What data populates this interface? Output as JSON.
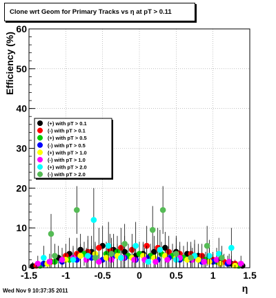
{
  "title": "Clone wrt Geom for Primary Tracks vs    η at pT > 0.11",
  "footer": "Wed Nov  9 10:37:35 2011",
  "chart_data": {
    "type": "scatter",
    "title": "Clone wrt Geom for Primary Tracks vs    η at pT > 0.11",
    "xlabel": "η",
    "ylabel": "Efficiency (%)",
    "xlim": [
      -1.5,
      1.5
    ],
    "ylim": [
      0,
      60
    ],
    "x_ticks": [
      "-1.5",
      "-1",
      "-0.5",
      "0",
      "0.5",
      "1",
      "1.5"
    ],
    "y_ticks": [
      "0",
      "10",
      "20",
      "30",
      "40",
      "50",
      "60"
    ],
    "grid": true,
    "legend_position": "left, middle",
    "series": [
      {
        "name": "(+) with pT > 0.1",
        "color": "#000000",
        "points": [
          [
            -1.45,
            0.4
          ],
          [
            -1.3,
            1.0
          ],
          [
            -1.1,
            2.5
          ],
          [
            -0.95,
            3.5
          ],
          [
            -0.8,
            4.5
          ],
          [
            -0.65,
            4.0
          ],
          [
            -0.5,
            5.5
          ],
          [
            -0.35,
            4.5
          ],
          [
            -0.2,
            4.0
          ],
          [
            -0.05,
            3.0
          ],
          [
            0.05,
            3.5
          ],
          [
            0.2,
            4.0
          ],
          [
            0.35,
            5.0
          ],
          [
            0.5,
            4.0
          ],
          [
            0.65,
            3.5
          ],
          [
            0.8,
            3.0
          ],
          [
            0.95,
            2.5
          ],
          [
            1.1,
            1.5
          ],
          [
            1.25,
            1.0
          ],
          [
            1.4,
            0.5
          ]
        ],
        "errors": [
          1,
          2,
          3,
          4,
          4,
          4,
          5,
          4,
          4,
          3,
          3,
          4,
          4,
          4,
          3,
          3,
          3,
          2,
          2,
          1
        ]
      },
      {
        "name": "(-) with pT > 0.1",
        "color": "#ff0000",
        "points": [
          [
            -1.4,
            0.5
          ],
          [
            -1.2,
            1.5
          ],
          [
            -1.0,
            3.0
          ],
          [
            -0.85,
            3.5
          ],
          [
            -0.7,
            4.0
          ],
          [
            -0.55,
            5.0
          ],
          [
            -0.4,
            4.5
          ],
          [
            -0.25,
            5.0
          ],
          [
            -0.1,
            4.5
          ],
          [
            0.1,
            5.5
          ],
          [
            0.25,
            5.0
          ],
          [
            0.4,
            4.0
          ],
          [
            0.55,
            3.5
          ],
          [
            0.7,
            3.5
          ],
          [
            0.85,
            3.0
          ],
          [
            1.0,
            2.0
          ],
          [
            1.15,
            1.5
          ],
          [
            1.3,
            1.0
          ]
        ],
        "errors": [
          1,
          2,
          3,
          4,
          4,
          5,
          4,
          5,
          4,
          5,
          5,
          4,
          3,
          3,
          3,
          2,
          2,
          1
        ]
      },
      {
        "name": "(+) with pT > 0.5",
        "color": "#00cc00",
        "points": [
          [
            -1.35,
            0.5
          ],
          [
            -1.15,
            1.5
          ],
          [
            -0.95,
            2.0
          ],
          [
            -0.75,
            3.5
          ],
          [
            -0.6,
            3.0
          ],
          [
            -0.45,
            3.5
          ],
          [
            -0.3,
            4.0
          ],
          [
            -0.15,
            3.0
          ],
          [
            0.0,
            3.5
          ],
          [
            0.15,
            3.0
          ],
          [
            0.3,
            3.5
          ],
          [
            0.45,
            3.0
          ],
          [
            0.6,
            2.5
          ],
          [
            0.75,
            3.0
          ],
          [
            0.9,
            2.0
          ],
          [
            1.05,
            1.5
          ],
          [
            1.2,
            1.0
          ],
          [
            1.35,
            0.5
          ]
        ],
        "errors": [
          1,
          2,
          2,
          3,
          3,
          3,
          4,
          3,
          3,
          3,
          3,
          3,
          3,
          3,
          2,
          2,
          2,
          1
        ]
      },
      {
        "name": "(-) with pT > 0.5",
        "color": "#0000ff",
        "points": [
          [
            -1.3,
            1.0
          ],
          [
            -1.05,
            1.5
          ],
          [
            -0.85,
            2.0
          ],
          [
            -0.65,
            2.5
          ],
          [
            -0.5,
            2.0
          ],
          [
            -0.35,
            3.0
          ],
          [
            -0.2,
            2.5
          ],
          [
            -0.05,
            2.0
          ],
          [
            0.1,
            2.5
          ],
          [
            0.25,
            2.0
          ],
          [
            0.4,
            2.5
          ],
          [
            0.55,
            2.0
          ],
          [
            0.7,
            2.0
          ],
          [
            0.85,
            1.5
          ],
          [
            1.0,
            1.5
          ],
          [
            1.2,
            1.0
          ]
        ],
        "errors": [
          1,
          2,
          2,
          3,
          2,
          3,
          3,
          2,
          3,
          2,
          3,
          2,
          2,
          2,
          2,
          1
        ]
      },
      {
        "name": "(+) with pT > 1.0",
        "color": "#ffff00",
        "points": [
          [
            -1.25,
            1.0
          ],
          [
            -1.0,
            2.0
          ],
          [
            -0.8,
            3.0
          ],
          [
            -0.6,
            3.5
          ],
          [
            -0.45,
            2.5
          ],
          [
            -0.3,
            3.0
          ],
          [
            -0.1,
            2.5
          ],
          [
            0.05,
            3.0
          ],
          [
            0.2,
            2.5
          ],
          [
            0.35,
            3.0
          ],
          [
            0.5,
            2.5
          ],
          [
            0.65,
            2.0
          ],
          [
            0.8,
            2.0
          ],
          [
            0.95,
            1.5
          ],
          [
            1.1,
            1.0
          ],
          [
            1.3,
            0.5
          ]
        ],
        "errors": [
          1,
          2,
          3,
          3,
          3,
          3,
          3,
          3,
          3,
          3,
          3,
          2,
          2,
          2,
          2,
          1
        ]
      },
      {
        "name": "(-) with pT > 1.0",
        "color": "#ff00ff",
        "points": [
          [
            -1.38,
            1.0
          ],
          [
            -1.22,
            1.5
          ],
          [
            -1.05,
            2.0
          ],
          [
            -0.9,
            2.5
          ],
          [
            -0.72,
            2.0
          ],
          [
            -0.55,
            1.5
          ],
          [
            -0.38,
            2.0
          ],
          [
            -0.22,
            2.5
          ],
          [
            -0.07,
            2.0
          ],
          [
            0.07,
            2.0
          ],
          [
            0.22,
            1.5
          ],
          [
            0.38,
            2.0
          ],
          [
            0.55,
            2.5
          ],
          [
            0.72,
            2.0
          ],
          [
            0.88,
            1.5
          ],
          [
            1.05,
            2.0
          ],
          [
            1.22,
            1.5
          ],
          [
            1.38,
            1.0
          ]
        ],
        "errors": [
          2,
          2,
          3,
          3,
          3,
          2,
          3,
          3,
          3,
          3,
          2,
          3,
          3,
          3,
          2,
          3,
          2,
          2
        ]
      },
      {
        "name": "(+) with pT > 2.0",
        "color": "#00ffff",
        "points": [
          [
            -1.3,
            2.5
          ],
          [
            -0.9,
            2.0
          ],
          [
            -0.7,
            3.0
          ],
          [
            -0.62,
            12.0
          ],
          [
            -0.42,
            5.5
          ],
          [
            -0.25,
            2.5
          ],
          [
            -0.05,
            5.5
          ],
          [
            0.12,
            1.5
          ],
          [
            0.28,
            4.5
          ],
          [
            0.5,
            2.0
          ],
          [
            0.75,
            3.0
          ],
          [
            0.95,
            3.0
          ],
          [
            1.08,
            3.5
          ],
          [
            1.25,
            5.0
          ]
        ],
        "errors": [
          3,
          3,
          4,
          8,
          6,
          3,
          6,
          2,
          5,
          3,
          4,
          4,
          4,
          5
        ]
      },
      {
        "name": "(-) with pT > 2.0",
        "color": "#55bb55",
        "points": [
          [
            -1.2,
            8.5
          ],
          [
            -1.15,
            3.0
          ],
          [
            -0.85,
            14.5
          ],
          [
            -0.6,
            2.5
          ],
          [
            -0.38,
            3.5
          ],
          [
            -0.2,
            6.0
          ],
          [
            0.18,
            9.5
          ],
          [
            0.32,
            14.5
          ],
          [
            0.5,
            3.5
          ],
          [
            0.7,
            2.5
          ],
          [
            0.92,
            5.5
          ],
          [
            1.12,
            2.5
          ]
        ],
        "errors": [
          5,
          3,
          6,
          3,
          4,
          5,
          6,
          6,
          4,
          3,
          5,
          3
        ]
      }
    ]
  }
}
